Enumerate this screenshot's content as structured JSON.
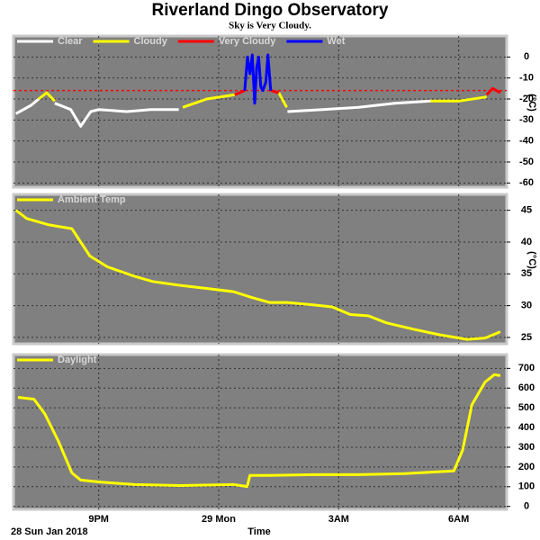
{
  "title": "Riverland Dingo Observatory",
  "subtitle": "Sky is Very Cloudy.",
  "chart_data": [
    {
      "type": "line",
      "ylabel": "(°C)",
      "xlim": [
        18.87,
        31.2
      ],
      "ylim": [
        -62,
        10
      ],
      "yticks": [
        -60,
        -50,
        -40,
        -30,
        -20,
        -10,
        0
      ],
      "grid": true,
      "threshold": -16,
      "threshold_color": "#ff0000",
      "series": [
        {
          "name": "Clear",
          "color": "#ffffff",
          "x": [
            18.93,
            19.31,
            19.5,
            19.7,
            19.9,
            20.3,
            20.55,
            20.8,
            21.0,
            21.7,
            22.3,
            23.0,
            24.0,
            25.72,
            26.6,
            27.5,
            28.4,
            29.3
          ],
          "values": [
            -27,
            -23,
            -20,
            null,
            -22,
            -25,
            -33,
            -26,
            -25,
            -26,
            -25,
            -25,
            null,
            -26,
            -25,
            -24,
            -22,
            -21
          ]
        },
        {
          "name": "Cloudy",
          "color": "#ffff00",
          "x": [
            19.5,
            19.7,
            19.9,
            22.5,
            23.1,
            23.7,
            24.4,
            25.0,
            25.5,
            25.7,
            27.0,
            29.3,
            30.0,
            30.7
          ],
          "values": [
            -20,
            -17,
            -21,
            null,
            -24,
            -20,
            -18,
            null,
            -17,
            -24,
            null,
            -21,
            -21,
            -19
          ]
        },
        {
          "name": "Very Cloudy",
          "color": "#ff0000",
          "x": [
            24.4,
            24.65,
            25.0,
            25.3,
            25.5,
            28.0,
            30.7,
            30.85,
            31.04
          ],
          "values": [
            -18,
            -16,
            null,
            -16,
            -17,
            null,
            -18,
            -15,
            -17
          ]
        },
        {
          "name": "Wet",
          "color": "#0000ff",
          "x": [
            24.65,
            24.72,
            24.78,
            24.84,
            24.9,
            24.95,
            25.0,
            25.05,
            25.1,
            25.18,
            25.23,
            25.3
          ],
          "values": [
            -16,
            0,
            -8,
            1,
            -22,
            -5,
            0,
            -14,
            -16,
            -12,
            1,
            -16
          ]
        }
      ]
    },
    {
      "type": "line",
      "ylabel": "(°C)",
      "xlim": [
        18.87,
        31.2
      ],
      "ylim": [
        24,
        47.5
      ],
      "yticks": [
        25,
        30,
        35,
        40,
        45
      ],
      "grid": true,
      "series": [
        {
          "name": "Ambient Temp",
          "color": "#ffff00",
          "x": [
            18.93,
            19.2,
            19.76,
            20.33,
            20.55,
            20.78,
            21.22,
            21.9,
            22.35,
            23.02,
            23.7,
            24.37,
            24.82,
            25.27,
            25.72,
            26.39,
            26.84,
            27.29,
            27.74,
            28.19,
            28.87,
            29.54,
            30.21,
            30.66,
            31.04
          ],
          "values": [
            45,
            43.7,
            42.7,
            42.1,
            40,
            37.8,
            36.1,
            34.6,
            33.8,
            33.2,
            32.7,
            32.2,
            31.3,
            30.5,
            30.5,
            30.1,
            29.8,
            28.6,
            28.4,
            27.3,
            26.3,
            25.4,
            24.7,
            24.9,
            25.9
          ]
        }
      ]
    },
    {
      "type": "line",
      "xlabel": "Time",
      "date_label": "28 Sun Jan 2018",
      "xlim": [
        18.87,
        31.2
      ],
      "ylim": [
        -15,
        770
      ],
      "yticks": [
        0,
        100,
        200,
        300,
        400,
        500,
        600,
        700
      ],
      "grid": true,
      "xticks": [
        {
          "value": 21,
          "label": "9PM"
        },
        {
          "value": 24,
          "label": "29 Mon"
        },
        {
          "value": 27,
          "label": "3AM"
        },
        {
          "value": 30,
          "label": "6AM"
        }
      ],
      "series": [
        {
          "name": "Daylight",
          "color": "#ffff00",
          "x": [
            18.98,
            19.38,
            19.65,
            19.99,
            20.33,
            20.55,
            21.0,
            21.9,
            23.02,
            24.37,
            24.71,
            24.78,
            25.27,
            26.39,
            27.52,
            28.64,
            29.88,
            30.1,
            30.33,
            30.66,
            30.89,
            31.04
          ],
          "values": [
            553,
            544,
            470,
            332,
            170,
            134,
            124,
            111,
            106,
            111,
            101,
            157,
            157,
            161,
            161,
            166,
            180,
            286,
            516,
            631,
            668,
            663
          ]
        }
      ]
    }
  ]
}
